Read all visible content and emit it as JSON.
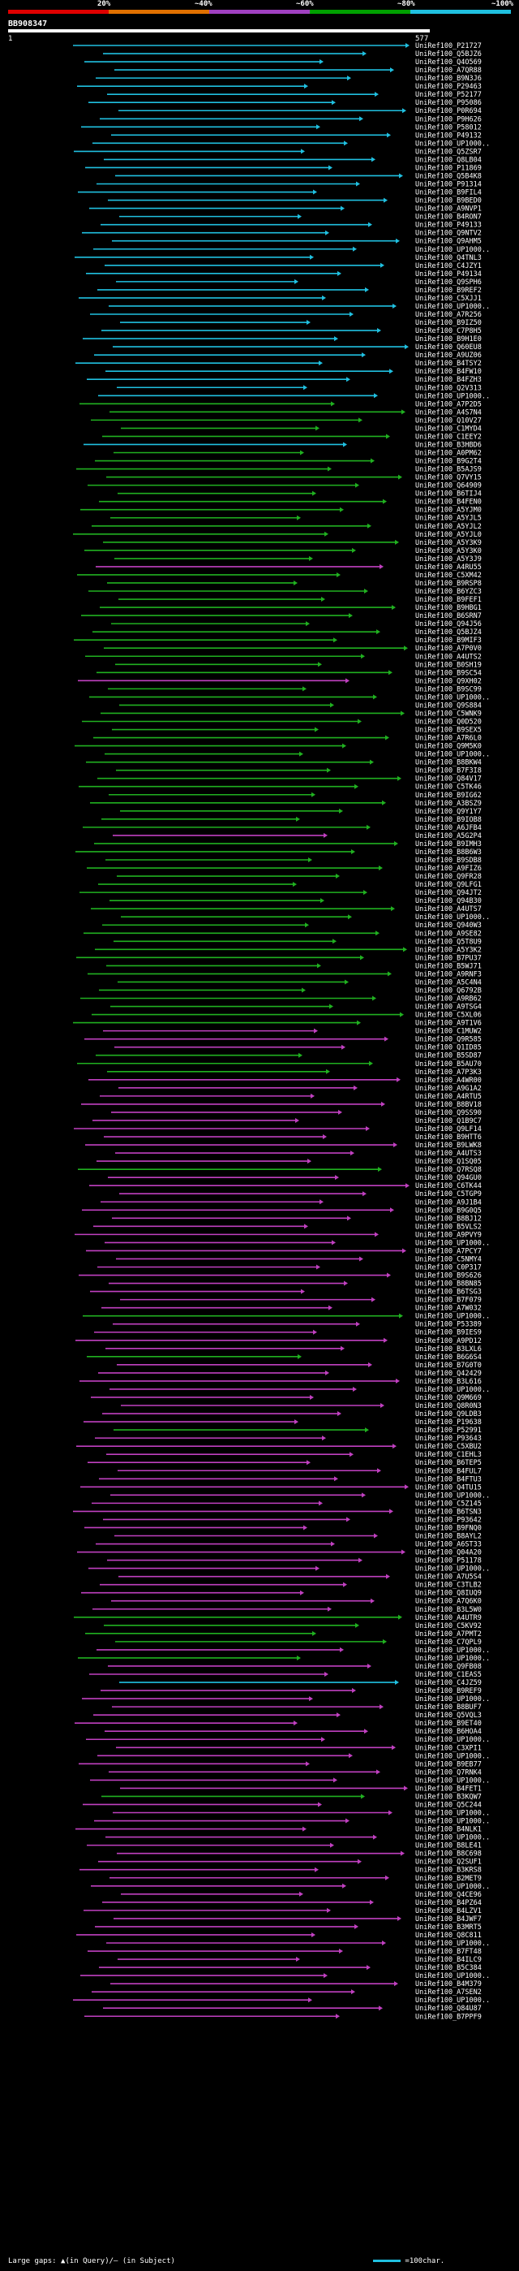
{
  "legend": {
    "colors": [
      "#e00000",
      "#e07000",
      "#a040c0",
      "#00a000",
      "#20c0e0"
    ],
    "ticks": [
      "20%",
      "~40%",
      "~60%",
      "~80%",
      "~100%"
    ]
  },
  "query": {
    "id": "BB908347",
    "start": "1",
    "end": "577"
  },
  "footer": {
    "gaps_text": "Large gaps: ▲(in Query)/– (in Subject)",
    "scale_text": "=100char."
  },
  "hit_labels": [
    "UniRef100_P21727",
    "UniRef100_Q5BJZ6",
    "UniRef100_Q4O569",
    "UniRef100_A7QR88",
    "UniRef100_B9N3J6",
    "UniRef100_P29463",
    "UniRef100_P52177",
    "UniRef100_P95086",
    "UniRef100_P0R694",
    "UniRef100_P9H626",
    "UniRef100_P58012",
    "UniRef100_P49132",
    "UniRef100_UP1000..",
    "UniRef100_Q5ZSR7",
    "UniRef100_Q8LB04",
    "UniRef100_P11869",
    "UniRef100_Q5B4K8",
    "UniRef100_P91314",
    "UniRef100_B9FIL4",
    "UniRef100_B9BED0",
    "UniRef100_A9NVP1",
    "UniRef100_B4RON7",
    "UniRef100_P49133",
    "UniRef100_Q9NTV2",
    "UniRef100_Q9AHM5",
    "UniRef100_UP1000..",
    "UniRef100_Q4TNL3",
    "UniRef100_C4JZY1",
    "UniRef100_P49134",
    "UniRef100_Q9SPH6",
    "UniRef100_B9REF2",
    "UniRef100_C5XJJ1",
    "UniRef100_UP1000..",
    "UniRef100_A7R256",
    "UniRef100_B9IZ50",
    "UniRef100_C7P8H5",
    "UniRef100_B9H1E0",
    "UniRef100_Q60EU8",
    "UniRef100_A9UZ06",
    "UniRef100_B4TSY2",
    "UniRef100_B4FW10",
    "UniRef100_B4FZH3",
    "UniRef100_Q2V313",
    "UniRef100_UP1000..",
    "UniRef100_A7P2D5",
    "UniRef100_A4S7N4",
    "UniRef100_Q10V27",
    "UniRef100_C1MYD4",
    "UniRef100_C1EEY2",
    "UniRef100_B3HBD6",
    "UniRef100_A0PM62",
    "UniRef100_B9G2T4",
    "UniRef100_B5AJS9",
    "UniRef100_Q7VY15",
    "UniRef100_Q64909",
    "UniRef100_B6TIJ4",
    "UniRef100_B4FEN0",
    "UniRef100_A5YJM0",
    "UniRef100_A5YJL5",
    "UniRef100_A5YJL2",
    "UniRef100_A5YJL0",
    "UniRef100_A5Y3K9",
    "UniRef100_A5Y3K0",
    "UniRef100_A5Y3J9",
    "UniRef100_A4RU55",
    "UniRef100_C5XM42",
    "UniRef100_B9RSP8",
    "UniRef100_B6YZC3",
    "UniRef100_B9FEF1",
    "UniRef100_B9HBG1",
    "UniRef100_B6SRN7",
    "UniRef100_Q94J56",
    "UniRef100_Q5BJZ4",
    "UniRef100_B9MIF3",
    "UniRef100_A7P0V0",
    "UniRef100_A4UTS2",
    "UniRef100_B0SH19",
    "UniRef100_B9SC54",
    "UniRef100_Q9XH02",
    "UniRef100_B9SC99",
    "UniRef100_UP1000..",
    "UniRef100_Q9S884",
    "UniRef100_C5WNK9",
    "UniRef100_Q0D520",
    "UniRef100_B9SEX5",
    "UniRef100_A7R6L0",
    "UniRef100_Q9M5K0",
    "UniRef100_UP1000..",
    "UniRef100_B8BKW4",
    "UniRef100_B7F3I8",
    "UniRef100_Q84V17",
    "UniRef100_C5TK46",
    "UniRef100_B9IG62",
    "UniRef100_A3BSZ9",
    "UniRef100_Q9Y1Y7",
    "UniRef100_B9IOB8",
    "UniRef100_A6JFB4",
    "UniRef100_A5G2P4",
    "UniRef100_B9IMH3",
    "UniRef100_B8B6W3",
    "UniRef100_B9SDB8",
    "UniRef100_A9FIZ6",
    "UniRef100_Q9FR28",
    "UniRef100_Q9LFG1",
    "UniRef100_Q94JT2",
    "UniRef100_Q94B30",
    "UniRef100_A4UTS7",
    "UniRef100_UP1000..",
    "UniRef100_Q940W3",
    "UniRef100_A9SE82",
    "UniRef100_Q5T8U9",
    "UniRef100_A5Y3K2",
    "UniRef100_B7PU37",
    "UniRef100_B5WJ71",
    "UniRef100_A9RNF3",
    "UniRef100_A5C4N4",
    "UniRef100_Q6792B",
    "UniRef100_A9RB62",
    "UniRef100_A9TSG4",
    "UniRef100_C5XL06",
    "UniRef100_A9T1V6",
    "UniRef100_C1MUW2",
    "UniRef100_Q9R585",
    "UniRef100_Q1ID85",
    "UniRef100_B5SD87",
    "UniRef100_B5AU70",
    "UniRef100_A7P3K3",
    "UniRef100_A4WR00",
    "UniRef100_A9G1A2",
    "UniRef100_A4RTU5",
    "UniRef100_B8BV18",
    "UniRef100_Q9SS90",
    "UniRef100_Q1B9C7",
    "UniRef100_Q9LF14",
    "UniRef100_B9HTT6",
    "UniRef100_B9LWK8",
    "UniRef100_A4UTS3",
    "UniRef100_Q1SQ05",
    "UniRef100_Q7RSQ8",
    "UniRef100_Q94GU0",
    "UniRef100_C6TK44",
    "UniRef100_C5TGP9",
    "UniRef100_A9J1B4",
    "UniRef100_B9G0Q5",
    "UniRef100_B8BJ12",
    "UniRef100_B5VLS2",
    "UniRef100_A9PVY9",
    "UniRef100_UP1000..",
    "UniRef100_A7PCY7",
    "UniRef100_C5NMY4",
    "UniRef100_C0P317",
    "UniRef100_B9S626",
    "UniRef100_B8BN85",
    "UniRef100_B6TSG3",
    "UniRef100_B7F079",
    "UniRef100_A7W032",
    "UniRef100_UP1000..",
    "UniRef100_P53389",
    "UniRef100_B9IES9",
    "UniRef100_A9PD12",
    "UniRef100_B3LXL6",
    "UniRef100_B6G6S4",
    "UniRef100_B7G0T0",
    "UniRef100_Q42429",
    "UniRef100_B3L616",
    "UniRef100_UP1000..",
    "UniRef100_Q9M669",
    "UniRef100_Q8R0N3",
    "UniRef100_Q9LDB3",
    "UniRef100_P19638",
    "UniRef100_P52991",
    "UniRef100_P93643",
    "UniRef100_C5XBU2",
    "UniRef100_C1EHL3",
    "UniRef100_B6TEP5",
    "UniRef100_B4FUL7",
    "UniRef100_B4FTU3",
    "UniRef100_Q4TU15",
    "UniRef100_UP1000..",
    "UniRef100_C5Z145",
    "UniRef100_B6TSN3",
    "UniRef100_P93642",
    "UniRef100_B9FNQ0",
    "UniRef100_B8AYL2",
    "UniRef100_A6ST33",
    "UniRef100_Q04A20",
    "UniRef100_P51178",
    "UniRef100_UP1000..",
    "UniRef100_A7U5S4",
    "UniRef100_C3TLB2",
    "UniRef100_Q8IUQ9",
    "UniRef100_A7Q6K0",
    "UniRef100_B3L5W0",
    "UniRef100_A4UTR9",
    "UniRef100_C5KV92",
    "UniRef100_A7PMT2",
    "UniRef100_C7QPL9",
    "UniRef100_UP1000..",
    "UniRef100_UP1000..",
    "UniRef100_Q9FB08",
    "UniRef100_C1EAS5",
    "UniRef100_C4JZ59",
    "UniRef100_B9REF9",
    "UniRef100_UP1000..",
    "UniRef100_B8BUF7",
    "UniRef100_Q5VQL3",
    "UniRef100_B9ET40",
    "UniRef100_B6HOA4",
    "UniRef100_UP1000..",
    "UniRef100_C3XPI1",
    "UniRef100_UP1000..",
    "UniRef100_B9EB77",
    "UniRef100_Q7RNK4",
    "UniRef100_UP1000..",
    "UniRef100_B4FET1",
    "UniRef100_B3KQW7",
    "UniRef100_Q5C244",
    "UniRef100_UP1000..",
    "UniRef100_UP1000..",
    "UniRef100_B4NLK1",
    "UniRef100_UP1000..",
    "UniRef100_B8LE41",
    "UniRef100_B8C698",
    "UniRef100_Q2SUF1",
    "UniRef100_B3KRS8",
    "UniRef100_B2MET9",
    "UniRef100_UP1000..",
    "UniRef100_Q4CE96",
    "UniRef100_B4PZ64",
    "UniRef100_B4LZV1",
    "UniRef100_B4JWF7",
    "UniRef100_B3MRT5",
    "UniRef100_Q8C811",
    "UniRef100_UP1000..",
    "UniRef100_B7FT48",
    "UniRef100_B4ILC9",
    "UniRef100_B5C384",
    "UniRef100_UP1000..",
    "UniRef100_B4M379",
    "UniRef100_A7SEN2",
    "UniRef100_UP1000..",
    "UniRef100_Q84U87",
    "UniRef100_B7PPF9"
  ],
  "hit_colors": [
    "c",
    "c",
    "c",
    "c",
    "c",
    "c",
    "c",
    "c",
    "c",
    "c",
    "c",
    "c",
    "c",
    "c",
    "c",
    "c",
    "c",
    "c",
    "c",
    "c",
    "c",
    "c",
    "c",
    "c",
    "c",
    "c",
    "c",
    "c",
    "c",
    "c",
    "c",
    "c",
    "c",
    "c",
    "c",
    "c",
    "c",
    "c",
    "c",
    "c",
    "c",
    "c",
    "c",
    "c",
    "g",
    "g",
    "g",
    "g",
    "g",
    "c",
    "g",
    "g",
    "g",
    "g",
    "g",
    "g",
    "g",
    "g",
    "g",
    "g",
    "g",
    "g",
    "g",
    "g",
    "p",
    "g",
    "g",
    "g",
    "g",
    "g",
    "g",
    "g",
    "g",
    "g",
    "g",
    "g",
    "g",
    "g",
    "p",
    "g",
    "g",
    "g",
    "g",
    "g",
    "g",
    "g",
    "g",
    "g",
    "g",
    "g",
    "g",
    "g",
    "g",
    "g",
    "g",
    "g",
    "g",
    "p",
    "g",
    "g",
    "g",
    "g",
    "g",
    "g",
    "g",
    "g",
    "g",
    "g",
    "g",
    "g",
    "g",
    "g",
    "g",
    "g",
    "g",
    "g",
    "g",
    "g",
    "g",
    "g",
    "g",
    "p",
    "p",
    "p",
    "g",
    "g",
    "g",
    "p",
    "p",
    "p",
    "p",
    "p",
    "p",
    "p",
    "p",
    "p",
    "p",
    "p",
    "g",
    "p",
    "p",
    "p",
    "p",
    "p",
    "p",
    "p",
    "p",
    "p",
    "p",
    "p",
    "p",
    "p",
    "p",
    "p",
    "p",
    "p",
    "g",
    "p",
    "p",
    "p",
    "p",
    "g",
    "p",
    "p",
    "p",
    "p",
    "p",
    "p",
    "p",
    "p",
    "g",
    "p",
    "p",
    "p",
    "p",
    "p",
    "p",
    "p",
    "p",
    "p",
    "p",
    "p",
    "p",
    "p",
    "p",
    "p",
    "p",
    "p",
    "p",
    "p",
    "p",
    "p",
    "p",
    "g",
    "g",
    "g",
    "g",
    "p",
    "g",
    "p",
    "p",
    "c",
    "p",
    "p",
    "p",
    "p",
    "p",
    "p",
    "p",
    "p",
    "p",
    "p",
    "p",
    "p",
    "p",
    "g",
    "p",
    "p",
    "p",
    "p",
    "p",
    "p",
    "p",
    "p",
    "p",
    "p",
    "p",
    "p",
    "p",
    "p",
    "p",
    "p",
    "p",
    "p",
    "p",
    "p",
    "p",
    "p",
    "p",
    "p",
    "p",
    "p",
    "p",
    "p",
    "p",
    "p",
    "p",
    "p"
  ]
}
